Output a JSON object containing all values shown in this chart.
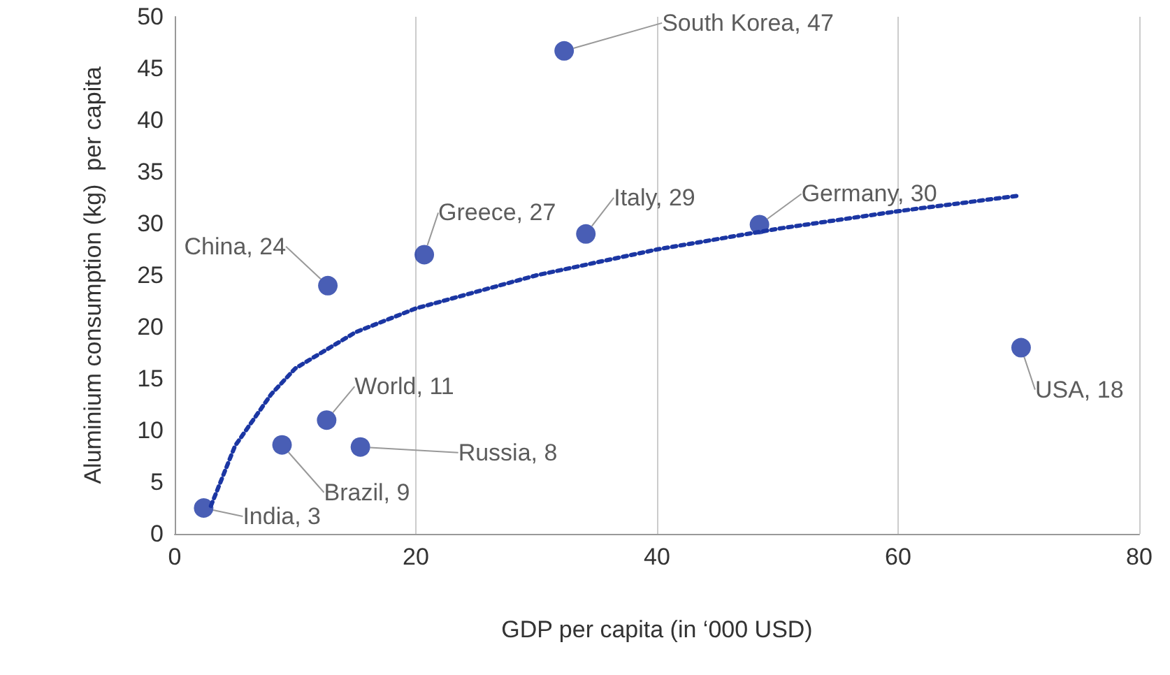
{
  "chart_data": {
    "type": "scatter",
    "xlabel": "GDP per capita (in ‘000 USD)",
    "ylabel": "Aluminium consumption (kg)  per capita",
    "xlim": [
      0,
      80
    ],
    "xticks": [
      0,
      20,
      40,
      60,
      80
    ],
    "ylim": [
      0,
      50
    ],
    "yticks": [
      0,
      5,
      10,
      15,
      20,
      25,
      30,
      35,
      40,
      45,
      50
    ],
    "grid": "x",
    "legend": false,
    "series": [
      {
        "color": "#1b36a3",
        "marker": "circle",
        "x": [
          2.4,
          8.9,
          12.6,
          12.7,
          15.4,
          20.7,
          32.3,
          34.1,
          48.5,
          70.2
        ],
        "values": [
          2.5,
          8.6,
          11,
          24,
          8.4,
          27,
          46.7,
          29,
          29.9,
          18
        ],
        "value_labels": [
          "India, 3",
          "Brazil, 9",
          "World, 11",
          "China, 24",
          "Russia, 8",
          "Greece, 27",
          "South Korea, 47",
          "Italy, 29",
          "Germany, 30",
          "USA, 18"
        ]
      },
      {
        "type": "line",
        "color": "#1b36a3",
        "marker": "none",
        "line_style": "dotted",
        "x": [
          3,
          5,
          8,
          10,
          15,
          20,
          30,
          40,
          50,
          60,
          70
        ],
        "values": [
          2.7,
          8.5,
          13.5,
          16,
          19.5,
          21.8,
          25,
          27.5,
          29.5,
          31.2,
          32.7
        ]
      }
    ]
  }
}
